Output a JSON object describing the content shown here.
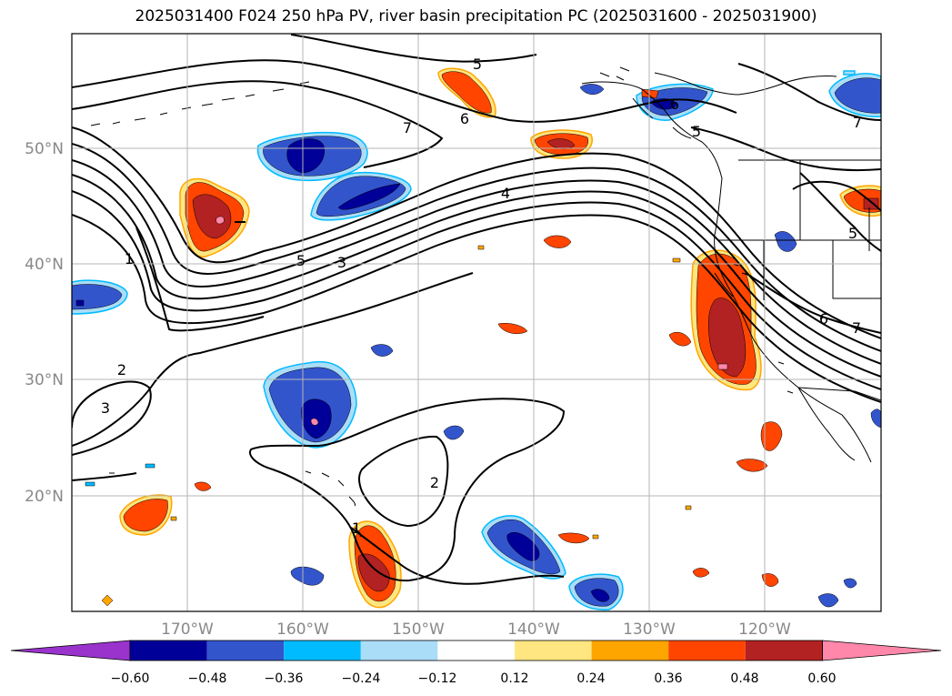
{
  "title": "2025031400 F024 250 hPa PV, river basin precipitation PC (2025031600 - 2025031900)",
  "lat_labels": [
    "50°N",
    "40°N",
    "30°N",
    "20°N"
  ],
  "lon_labels": [
    "170°W",
    "160°W",
    "150°W",
    "140°W",
    "130°W",
    "120°W"
  ],
  "colorbar": {
    "tick_labels": [
      "−0.60",
      "−0.48",
      "−0.36",
      "−0.24",
      "−0.12",
      "0.12",
      "0.24",
      "0.36",
      "0.48",
      "0.60"
    ],
    "colors": [
      "#9933cc",
      "#000099",
      "#3355cc",
      "#00bbff",
      "#aaddf8",
      "#ffffff",
      "#ffe680",
      "#ffa500",
      "#ff4500",
      "#b22222",
      "#ff88aa"
    ]
  },
  "contour_labels": [
    "5",
    "6",
    "7",
    "6",
    "5",
    "7",
    "4",
    "5",
    "3",
    "1",
    "2",
    "3",
    "2",
    "1",
    "5",
    "6",
    "7"
  ],
  "shading_colors": {
    "neg_light": "#aaddf8",
    "neg_cyan": "#00bbff",
    "neg_mid": "#3355cc",
    "neg_dark": "#000099",
    "neg_min": "#9933cc",
    "pos_light": "#ffe680",
    "pos_orange": "#ffa500",
    "pos_red": "#ff4500",
    "pos_dark": "#b22222",
    "pos_max": "#ff88aa"
  }
}
